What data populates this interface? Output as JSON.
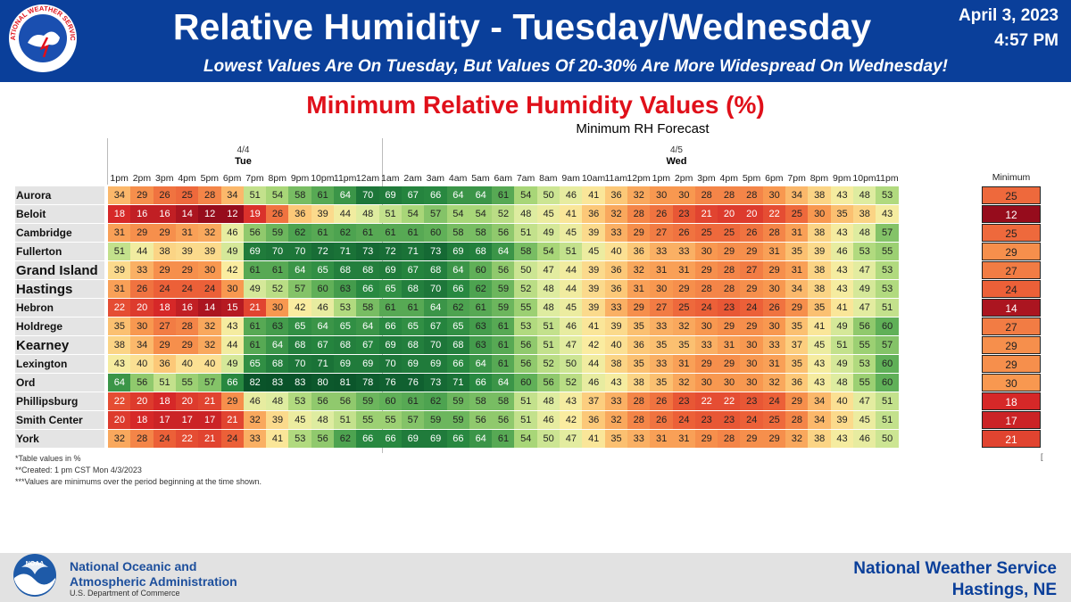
{
  "header": {
    "title": "Relative Humidity - Tuesday/Wednesday",
    "date": "April 3, 2023",
    "time": "4:57 PM",
    "subtitle": "Lowest Values Are On Tuesday, But Values Of 20-30% Are More Widespread On Wednesday!",
    "logo_text": "NATIONAL WEATHER SERVICE"
  },
  "chart_title": "Minimum Relative Humidity Values (%)",
  "grid_title": "Minimum RH Forecast",
  "days": [
    {
      "date": "4/4",
      "name": "Tue"
    },
    {
      "date": "4/5",
      "name": "Wed"
    }
  ],
  "hours": [
    "1pm",
    "2pm",
    "3pm",
    "4pm",
    "5pm",
    "6pm",
    "7pm",
    "8pm",
    "9pm",
    "10pm",
    "11pm",
    "12am",
    "1am",
    "2am",
    "3am",
    "4am",
    "5am",
    "6am",
    "7am",
    "8am",
    "9am",
    "10am",
    "11am",
    "12pm",
    "1pm",
    "2pm",
    "3pm",
    "4pm",
    "5pm",
    "6pm",
    "7pm",
    "8pm",
    "9pm",
    "10pm",
    "11pm"
  ],
  "minimum_header": "Minimum",
  "chart_data": {
    "type": "heatmap",
    "title": "Minimum RH Forecast",
    "x": [
      "1pm",
      "2pm",
      "3pm",
      "4pm",
      "5pm",
      "6pm",
      "7pm",
      "8pm",
      "9pm",
      "10pm",
      "11pm",
      "12am",
      "1am",
      "2am",
      "3am",
      "4am",
      "5am",
      "6am",
      "7am",
      "8am",
      "9am",
      "10am",
      "11am",
      "12pm",
      "1pm",
      "2pm",
      "3pm",
      "4pm",
      "5pm",
      "6pm",
      "7pm",
      "8pm",
      "9pm",
      "10pm",
      "11pm"
    ],
    "rows": [
      {
        "name": "Aurora",
        "values": [
          34,
          29,
          26,
          25,
          28,
          34,
          51,
          54,
          58,
          61,
          64,
          70,
          69,
          67,
          66,
          64,
          64,
          61,
          54,
          50,
          46,
          41,
          36,
          32,
          30,
          30,
          28,
          28,
          28,
          30,
          34,
          38,
          43,
          48,
          53
        ],
        "minimum": 25
      },
      {
        "name": "Beloit",
        "values": [
          18,
          16,
          16,
          14,
          12,
          12,
          19,
          26,
          36,
          39,
          44,
          48,
          51,
          54,
          57,
          54,
          54,
          52,
          48,
          45,
          41,
          36,
          32,
          28,
          26,
          23,
          21,
          20,
          20,
          22,
          25,
          30,
          35,
          38,
          43
        ],
        "minimum": 12
      },
      {
        "name": "Cambridge",
        "values": [
          31,
          29,
          29,
          31,
          32,
          46,
          56,
          59,
          62,
          61,
          62,
          61,
          61,
          61,
          60,
          58,
          58,
          56,
          51,
          49,
          45,
          39,
          33,
          29,
          27,
          26,
          25,
          25,
          26,
          28,
          31,
          38,
          43,
          48,
          57
        ],
        "minimum": 25
      },
      {
        "name": "Fullerton",
        "values": [
          51,
          44,
          38,
          39,
          39,
          49,
          69,
          70,
          70,
          72,
          71,
          73,
          72,
          71,
          73,
          69,
          68,
          64,
          58,
          54,
          51,
          45,
          40,
          36,
          33,
          33,
          30,
          29,
          29,
          31,
          35,
          39,
          46,
          53,
          55
        ],
        "minimum": 29
      },
      {
        "name": "Grand Island",
        "values": [
          39,
          33,
          29,
          29,
          30,
          42,
          61,
          61,
          64,
          65,
          68,
          68,
          69,
          67,
          68,
          64,
          60,
          56,
          50,
          47,
          44,
          39,
          36,
          32,
          31,
          31,
          29,
          28,
          27,
          29,
          31,
          38,
          43,
          47,
          53
        ],
        "minimum": 27,
        "big": true
      },
      {
        "name": "Hastings",
        "values": [
          31,
          26,
          24,
          24,
          24,
          30,
          49,
          52,
          57,
          60,
          63,
          66,
          65,
          68,
          70,
          66,
          62,
          59,
          52,
          48,
          44,
          39,
          36,
          31,
          30,
          29,
          28,
          28,
          29,
          30,
          34,
          38,
          43,
          49,
          53
        ],
        "minimum": 24,
        "big": true
      },
      {
        "name": "Hebron",
        "values": [
          22,
          20,
          18,
          16,
          14,
          15,
          21,
          30,
          42,
          46,
          53,
          58,
          61,
          61,
          64,
          62,
          61,
          59,
          55,
          48,
          45,
          39,
          33,
          29,
          27,
          25,
          24,
          23,
          24,
          26,
          29,
          35,
          41,
          47,
          51
        ],
        "minimum": 14
      },
      {
        "name": "Holdrege",
        "values": [
          35,
          30,
          27,
          28,
          32,
          43,
          61,
          63,
          65,
          64,
          65,
          64,
          66,
          65,
          67,
          65,
          63,
          61,
          53,
          51,
          46,
          41,
          39,
          35,
          33,
          32,
          30,
          29,
          29,
          30,
          35,
          41,
          49,
          56,
          60
        ],
        "minimum": 27
      },
      {
        "name": "Kearney",
        "values": [
          38,
          34,
          29,
          29,
          32,
          44,
          61,
          64,
          68,
          67,
          68,
          67,
          69,
          68,
          70,
          68,
          63,
          61,
          56,
          51,
          47,
          42,
          40,
          36,
          35,
          35,
          33,
          31,
          30,
          33,
          37,
          45,
          51,
          55,
          57
        ],
        "minimum": 29,
        "big": true
      },
      {
        "name": "Lexington",
        "values": [
          43,
          40,
          36,
          40,
          40,
          49,
          65,
          68,
          70,
          71,
          69,
          69,
          70,
          69,
          69,
          66,
          64,
          61,
          56,
          52,
          50,
          44,
          38,
          35,
          33,
          31,
          29,
          29,
          30,
          31,
          35,
          43,
          49,
          53,
          60
        ],
        "minimum": 29
      },
      {
        "name": "Ord",
        "values": [
          64,
          56,
          51,
          55,
          57,
          66,
          82,
          83,
          83,
          80,
          81,
          78,
          76,
          76,
          73,
          71,
          66,
          64,
          60,
          56,
          52,
          46,
          43,
          38,
          35,
          32,
          30,
          30,
          30,
          32,
          36,
          43,
          48,
          55,
          60
        ],
        "minimum": 30
      },
      {
        "name": "Phillipsburg",
        "values": [
          22,
          20,
          18,
          20,
          21,
          29,
          46,
          48,
          53,
          56,
          56,
          59,
          60,
          61,
          62,
          59,
          58,
          58,
          51,
          48,
          43,
          37,
          33,
          28,
          26,
          23,
          22,
          22,
          23,
          24,
          29,
          34,
          40,
          47,
          51
        ],
        "minimum": 18
      },
      {
        "name": "Smith Center",
        "values": [
          20,
          18,
          17,
          17,
          17,
          21,
          32,
          39,
          45,
          48,
          51,
          55,
          55,
          57,
          59,
          59,
          56,
          56,
          51,
          46,
          42,
          36,
          32,
          28,
          26,
          24,
          23,
          23,
          24,
          25,
          28,
          34,
          39,
          45,
          51
        ],
        "minimum": 17
      },
      {
        "name": "York",
        "values": [
          32,
          28,
          24,
          22,
          21,
          24,
          33,
          41,
          53,
          56,
          62,
          66,
          66,
          69,
          69,
          66,
          64,
          61,
          54,
          50,
          47,
          41,
          35,
          33,
          31,
          31,
          29,
          28,
          29,
          29,
          32,
          38,
          43,
          46,
          50
        ],
        "minimum": 21
      }
    ]
  },
  "notes": [
    "*Table values in %",
    "**Created: 1 pm CST Mon 4/3/2023",
    "***Values are minimums over the period beginning at the time shown."
  ],
  "footer": {
    "noaa_line1": "National Oceanic and",
    "noaa_line2": "Atmospheric Administration",
    "noaa_sub": "U.S. Department of Commerce",
    "noaa_logo_text": "NOAA",
    "nws_line1": "National Weather Service",
    "nws_line2": "Hastings, NE"
  }
}
